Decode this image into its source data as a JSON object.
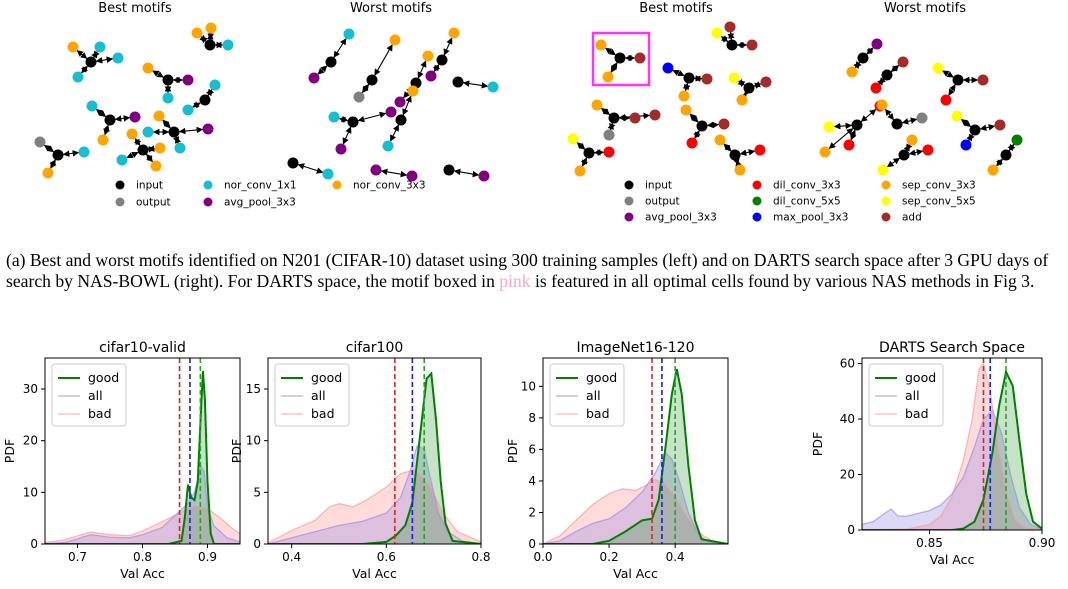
{
  "motifs": {
    "panels": [
      {
        "title": "Best motifs"
      },
      {
        "title": "Worst motifs"
      },
      {
        "title": "Best motifs"
      },
      {
        "title": "Worst motifs"
      }
    ],
    "legend_left": [
      {
        "label": "input",
        "color": "#000000"
      },
      {
        "label": "output",
        "color": "#808080"
      },
      {
        "label": "nor_conv_1x1",
        "color": "#17becf"
      },
      {
        "label": "avg_pool_3x3",
        "color": "#800080"
      },
      {
        "label": "nor_conv_3x3",
        "color": "#ffa500"
      }
    ],
    "legend_right": [
      {
        "label": "input",
        "color": "#000000"
      },
      {
        "label": "output",
        "color": "#808080"
      },
      {
        "label": "avg_pool_3x3",
        "color": "#800080"
      },
      {
        "label": "dil_conv_3x3",
        "color": "#ff0000"
      },
      {
        "label": "dil_conv_5x5",
        "color": "#008000"
      },
      {
        "label": "max_pool_3x3",
        "color": "#0000ff"
      },
      {
        "label": "sep_conv_3x3",
        "color": "#ffa500"
      },
      {
        "label": "sep_conv_5x5",
        "color": "#ffff00"
      },
      {
        "label": "add",
        "color": "#a52a2a"
      }
    ],
    "highlight_color": "#ff33ff"
  },
  "caption": {
    "part1": "(a) Best and worst motifs identified on N201 (CIFAR-10) dataset using 300 training samples (left) and on DARTS search space after 3 GPU days of search by NAS-BOWL (right). For DARTS space, the motif boxed in ",
    "pink": "pink",
    "part2": " is featured in all optimal cells found by various NAS methods in Fig 3."
  },
  "legend_labels": [
    "good",
    "all",
    "bad"
  ],
  "chart_data": [
    {
      "type": "area",
      "title": "cifar10-valid",
      "xlabel": "Val Acc",
      "ylabel": "PDF",
      "xlim": [
        0.65,
        0.95
      ],
      "ylim": [
        0,
        36
      ],
      "xticks": [
        0.7,
        0.8,
        0.9
      ],
      "xtick_labels": [
        "0.7",
        "0.8",
        "0.9"
      ],
      "yticks": [
        0,
        10,
        20,
        30
      ],
      "vlines": {
        "bad": 0.857,
        "all": 0.873,
        "good": 0.889
      },
      "series": [
        {
          "name": "good",
          "color": "#008000",
          "points": [
            [
              0.65,
              0
            ],
            [
              0.84,
              0
            ],
            [
              0.86,
              0.6
            ],
            [
              0.865,
              5
            ],
            [
              0.87,
              11.5
            ],
            [
              0.875,
              9
            ],
            [
              0.88,
              8.5
            ],
            [
              0.885,
              12
            ],
            [
              0.89,
              26
            ],
            [
              0.893,
              33.5
            ],
            [
              0.896,
              28
            ],
            [
              0.9,
              12
            ],
            [
              0.905,
              2
            ],
            [
              0.91,
              0
            ],
            [
              0.95,
              0
            ]
          ]
        },
        {
          "name": "all",
          "color": "#9b8fe6",
          "points": [
            [
              0.65,
              0
            ],
            [
              0.68,
              0.3
            ],
            [
              0.7,
              1
            ],
            [
              0.72,
              1.8
            ],
            [
              0.75,
              1.3
            ],
            [
              0.78,
              1.2
            ],
            [
              0.8,
              1.8
            ],
            [
              0.83,
              3.2
            ],
            [
              0.85,
              5.5
            ],
            [
              0.87,
              7.8
            ],
            [
              0.88,
              10
            ],
            [
              0.89,
              15
            ],
            [
              0.895,
              14
            ],
            [
              0.9,
              7
            ],
            [
              0.91,
              3.5
            ],
            [
              0.93,
              1.2
            ],
            [
              0.95,
              0.4
            ]
          ]
        },
        {
          "name": "bad",
          "color": "#ff9999",
          "points": [
            [
              0.65,
              0.3
            ],
            [
              0.68,
              0.8
            ],
            [
              0.7,
              1.6
            ],
            [
              0.72,
              2.3
            ],
            [
              0.75,
              1.8
            ],
            [
              0.78,
              1.6
            ],
            [
              0.8,
              2.5
            ],
            [
              0.83,
              4.3
            ],
            [
              0.86,
              6.2
            ],
            [
              0.88,
              7.5
            ],
            [
              0.9,
              6.8
            ],
            [
              0.92,
              5
            ],
            [
              0.94,
              2.8
            ],
            [
              0.95,
              2
            ]
          ]
        }
      ]
    },
    {
      "type": "area",
      "title": "cifar100",
      "xlabel": "Val Acc",
      "ylabel": "PDF",
      "xlim": [
        0.35,
        0.8
      ],
      "ylim": [
        0,
        18
      ],
      "xticks": [
        0.4,
        0.6,
        0.8
      ],
      "xtick_labels": [
        "0.4",
        "0.6",
        "0.8"
      ],
      "yticks": [
        0,
        5,
        10,
        15
      ],
      "vlines": {
        "bad": 0.618,
        "all": 0.655,
        "good": 0.68
      },
      "series": [
        {
          "name": "good",
          "color": "#008000",
          "points": [
            [
              0.35,
              0
            ],
            [
              0.55,
              0
            ],
            [
              0.6,
              0.2
            ],
            [
              0.62,
              0.8
            ],
            [
              0.64,
              1.8
            ],
            [
              0.655,
              4
            ],
            [
              0.67,
              10
            ],
            [
              0.685,
              16
            ],
            [
              0.695,
              16.5
            ],
            [
              0.705,
              12
            ],
            [
              0.715,
              6
            ],
            [
              0.725,
              2
            ],
            [
              0.74,
              0.3
            ],
            [
              0.8,
              0
            ]
          ]
        },
        {
          "name": "all",
          "color": "#9b8fe6",
          "points": [
            [
              0.35,
              0
            ],
            [
              0.4,
              0.6
            ],
            [
              0.45,
              1.2
            ],
            [
              0.5,
              1.8
            ],
            [
              0.55,
              2.2
            ],
            [
              0.6,
              3
            ],
            [
              0.63,
              4.5
            ],
            [
              0.65,
              7
            ],
            [
              0.665,
              9.5
            ],
            [
              0.68,
              9.2
            ],
            [
              0.69,
              7
            ],
            [
              0.71,
              3
            ],
            [
              0.73,
              1.2
            ],
            [
              0.76,
              0.3
            ],
            [
              0.8,
              0
            ]
          ]
        },
        {
          "name": "bad",
          "color": "#ff9999",
          "points": [
            [
              0.35,
              0.1
            ],
            [
              0.4,
              1.3
            ],
            [
              0.45,
              2.3
            ],
            [
              0.48,
              3.6
            ],
            [
              0.5,
              3.9
            ],
            [
              0.53,
              3.6
            ],
            [
              0.56,
              4.3
            ],
            [
              0.6,
              5.5
            ],
            [
              0.63,
              6.8
            ],
            [
              0.66,
              7.2
            ],
            [
              0.69,
              5.8
            ],
            [
              0.72,
              3
            ],
            [
              0.75,
              1.2
            ],
            [
              0.8,
              0.2
            ]
          ]
        }
      ]
    },
    {
      "type": "area",
      "title": "ImageNet16-120",
      "xlabel": "Val Acc",
      "ylabel": "PDF",
      "xlim": [
        0.0,
        0.56
      ],
      "ylim": [
        0,
        11.8
      ],
      "xticks": [
        0.0,
        0.2,
        0.4
      ],
      "xtick_labels": [
        "0.0",
        "0.2",
        "0.4"
      ],
      "yticks": [
        0,
        2,
        4,
        6,
        8,
        10
      ],
      "vlines": {
        "bad": 0.33,
        "all": 0.36,
        "good": 0.4
      },
      "series": [
        {
          "name": "good",
          "color": "#008000",
          "points": [
            [
              0,
              0
            ],
            [
              0.15,
              0
            ],
            [
              0.2,
              0.2
            ],
            [
              0.25,
              0.8
            ],
            [
              0.3,
              1.5
            ],
            [
              0.33,
              1.6
            ],
            [
              0.35,
              2.8
            ],
            [
              0.37,
              6
            ],
            [
              0.39,
              9.5
            ],
            [
              0.405,
              11.1
            ],
            [
              0.42,
              9.5
            ],
            [
              0.44,
              5
            ],
            [
              0.46,
              1.5
            ],
            [
              0.48,
              0.3
            ],
            [
              0.56,
              0
            ]
          ]
        },
        {
          "name": "all",
          "color": "#9b8fe6",
          "points": [
            [
              0,
              0
            ],
            [
              0.05,
              0.2
            ],
            [
              0.1,
              0.8
            ],
            [
              0.15,
              1.3
            ],
            [
              0.2,
              1.6
            ],
            [
              0.25,
              2.3
            ],
            [
              0.3,
              3.3
            ],
            [
              0.34,
              4.5
            ],
            [
              0.37,
              5.8
            ],
            [
              0.39,
              5.4
            ],
            [
              0.41,
              4.2
            ],
            [
              0.44,
              2
            ],
            [
              0.47,
              0.6
            ],
            [
              0.5,
              0.1
            ],
            [
              0.56,
              0
            ]
          ]
        },
        {
          "name": "bad",
          "color": "#ff9999",
          "points": [
            [
              0,
              0
            ],
            [
              0.05,
              0.5
            ],
            [
              0.1,
              1.5
            ],
            [
              0.15,
              2.5
            ],
            [
              0.2,
              3.2
            ],
            [
              0.24,
              3.5
            ],
            [
              0.28,
              3.4
            ],
            [
              0.31,
              3.7
            ],
            [
              0.34,
              4.1
            ],
            [
              0.37,
              3.8
            ],
            [
              0.4,
              3
            ],
            [
              0.44,
              1.6
            ],
            [
              0.48,
              0.6
            ],
            [
              0.52,
              0.1
            ],
            [
              0.56,
              0
            ]
          ]
        }
      ]
    },
    {
      "type": "area",
      "title": "DARTS Search Space",
      "xlabel": "Val Acc",
      "ylabel": "PDF",
      "xlim": [
        0.82,
        0.9
      ],
      "ylim": [
        0,
        62
      ],
      "xticks": [
        0.85,
        0.9
      ],
      "xtick_labels": [
        "0.85",
        "0.90"
      ],
      "yticks": [
        0,
        20,
        40,
        60
      ],
      "vlines": {
        "bad": 0.874,
        "all": 0.877,
        "good": 0.884
      },
      "series": [
        {
          "name": "good",
          "color": "#008000",
          "points": [
            [
              0.82,
              0
            ],
            [
              0.86,
              0
            ],
            [
              0.865,
              0.5
            ],
            [
              0.87,
              3
            ],
            [
              0.874,
              11
            ],
            [
              0.878,
              28
            ],
            [
              0.881,
              45
            ],
            [
              0.884,
              57
            ],
            [
              0.887,
              52
            ],
            [
              0.89,
              32
            ],
            [
              0.893,
              13
            ],
            [
              0.896,
              3
            ],
            [
              0.9,
              0.5
            ]
          ]
        },
        {
          "name": "all",
          "color": "#9b8fe6",
          "points": [
            [
              0.82,
              2
            ],
            [
              0.825,
              3
            ],
            [
              0.83,
              6
            ],
            [
              0.833,
              7.5
            ],
            [
              0.836,
              5
            ],
            [
              0.84,
              5
            ],
            [
              0.845,
              6
            ],
            [
              0.85,
              7
            ],
            [
              0.855,
              9
            ],
            [
              0.86,
              13
            ],
            [
              0.865,
              19
            ],
            [
              0.87,
              30
            ],
            [
              0.874,
              40
            ],
            [
              0.878,
              43
            ],
            [
              0.882,
              35
            ],
            [
              0.886,
              20
            ],
            [
              0.89,
              8
            ],
            [
              0.895,
              2
            ],
            [
              0.9,
              0.3
            ]
          ]
        },
        {
          "name": "bad",
          "color": "#ff9999",
          "points": [
            [
              0.82,
              0
            ],
            [
              0.84,
              0.3
            ],
            [
              0.85,
              2
            ],
            [
              0.855,
              5
            ],
            [
              0.86,
              12
            ],
            [
              0.865,
              25
            ],
            [
              0.869,
              40
            ],
            [
              0.872,
              58
            ],
            [
              0.874,
              60
            ],
            [
              0.877,
              50
            ],
            [
              0.88,
              32
            ],
            [
              0.884,
              14
            ],
            [
              0.888,
              4
            ],
            [
              0.892,
              1
            ],
            [
              0.9,
              0
            ]
          ]
        }
      ]
    }
  ]
}
